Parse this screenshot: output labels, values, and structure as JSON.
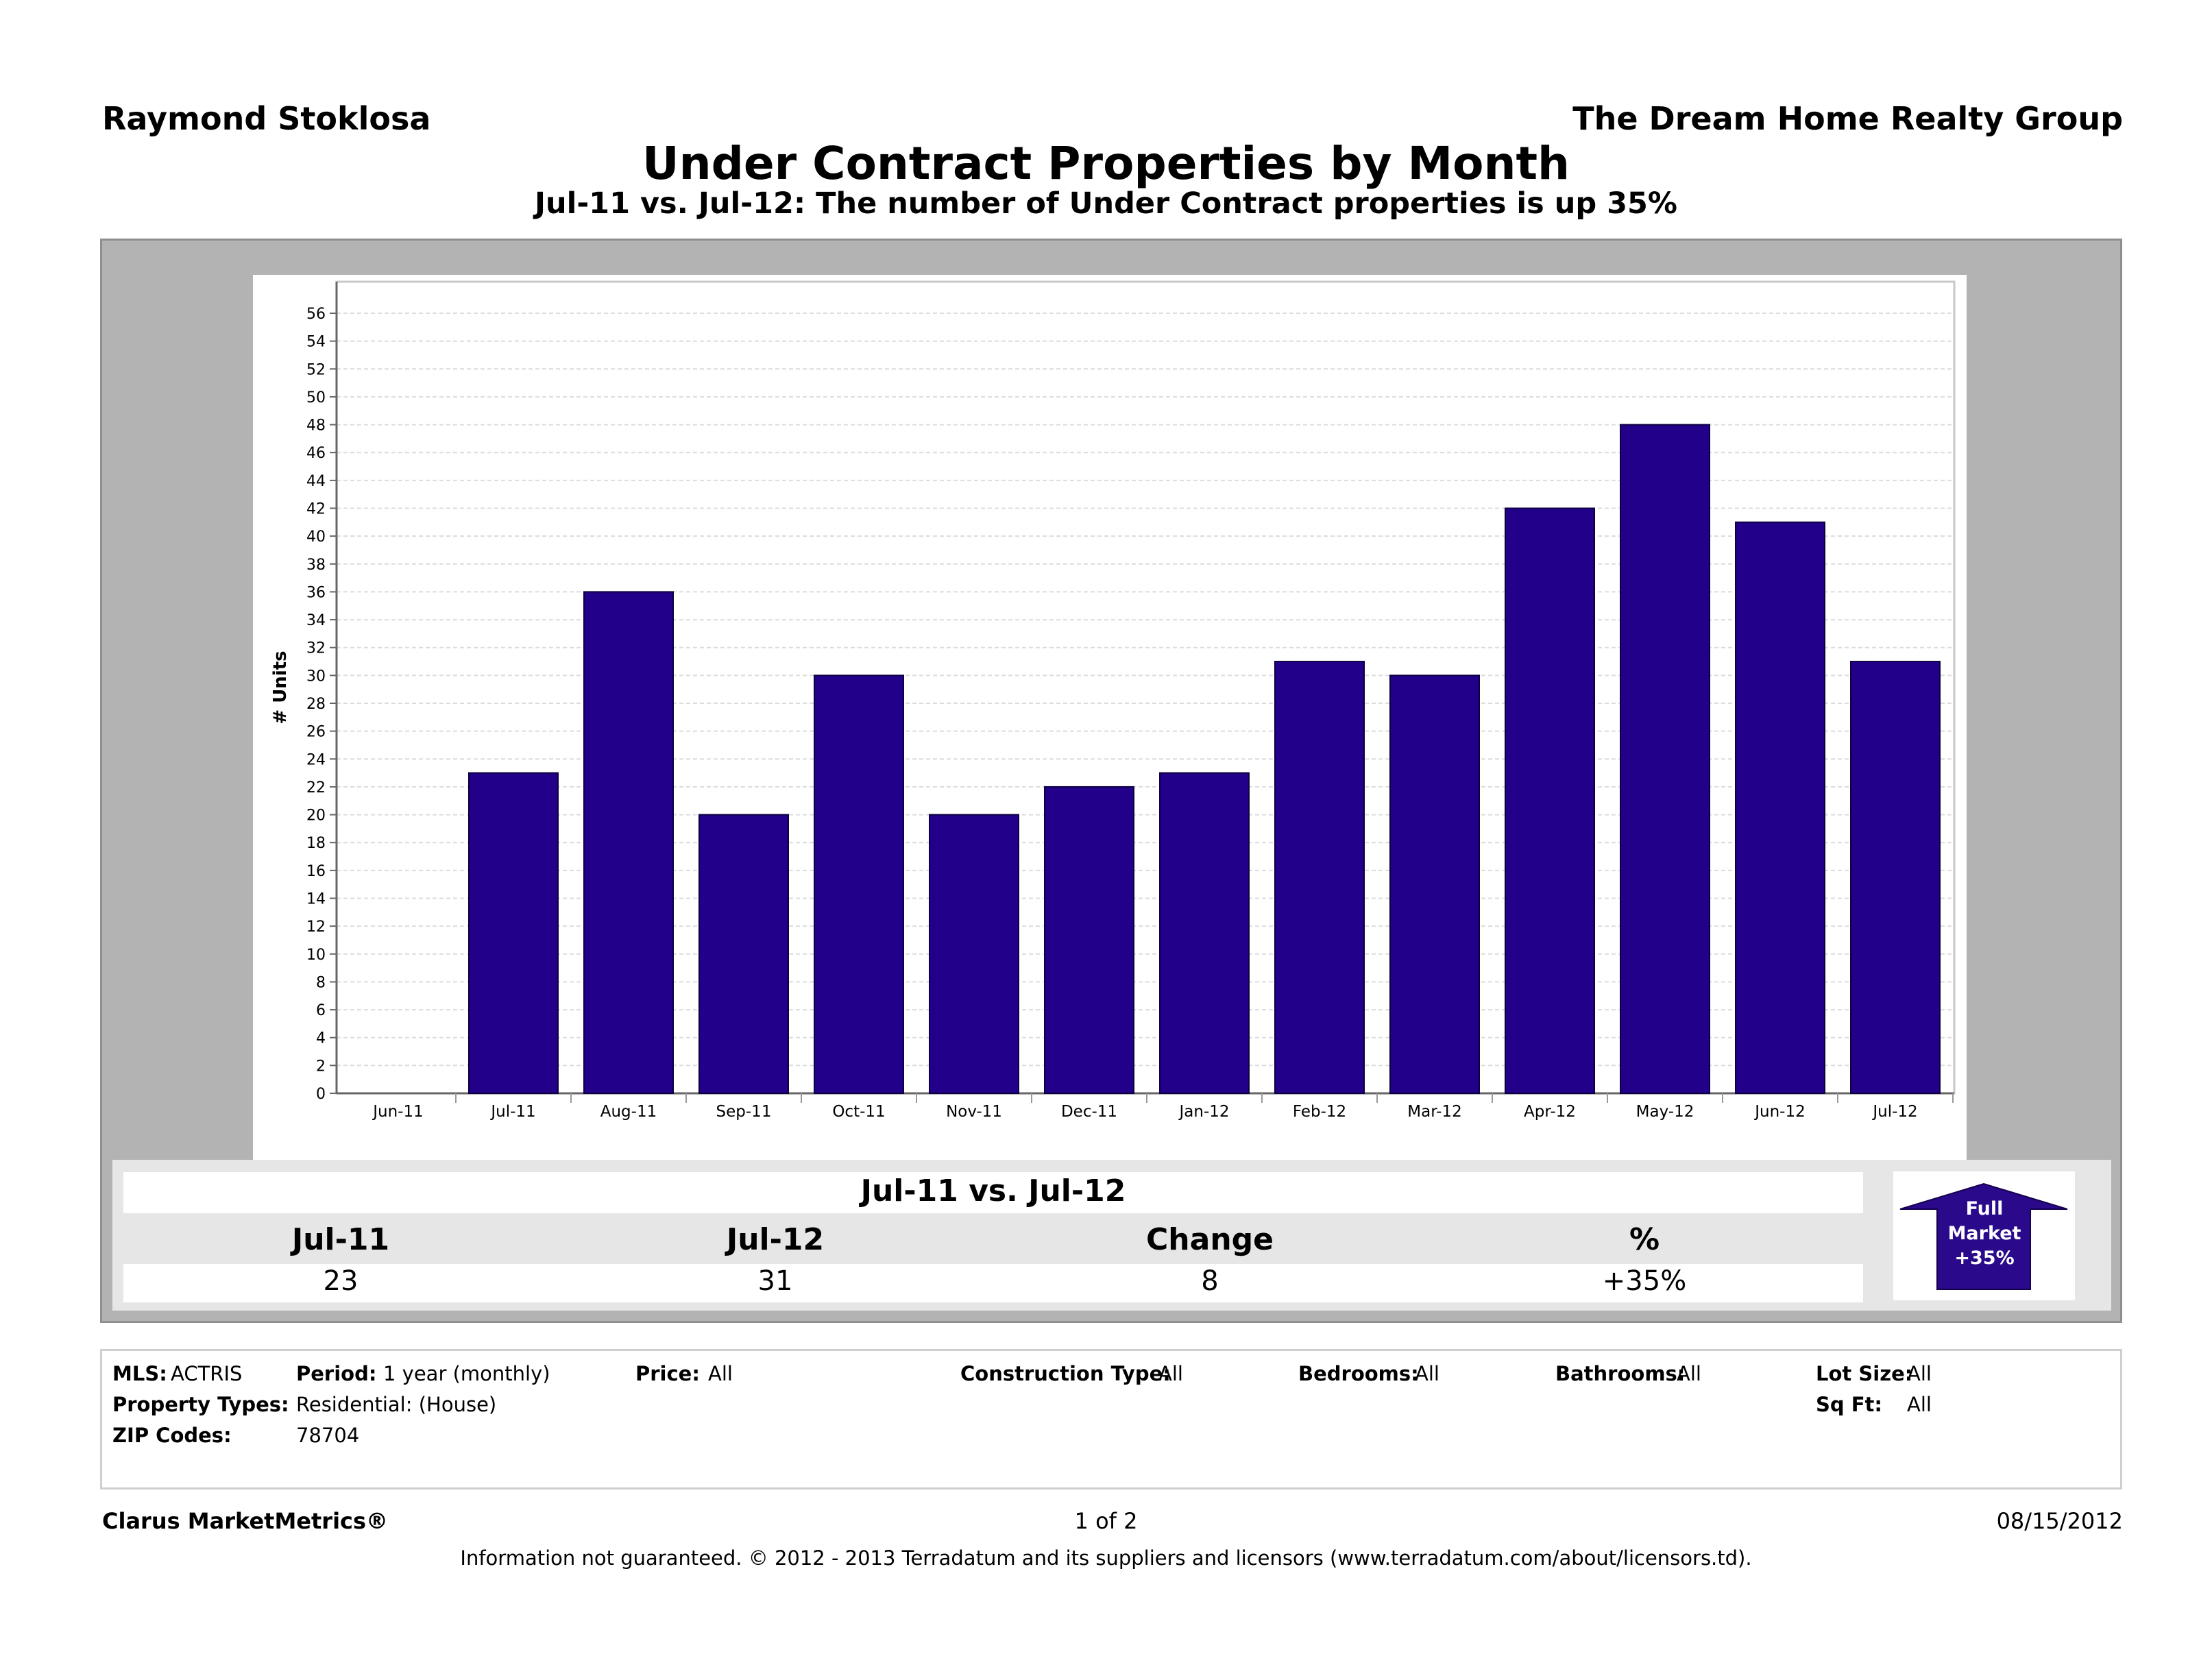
{
  "header": {
    "agent": "Raymond Stoklosa",
    "company": "The Dream Home Realty Group",
    "title": "Under Contract Properties by Month",
    "subtitle": "Jul-11 vs. Jul-12: The number of Under Contract properties is up 35%"
  },
  "chart_data": {
    "type": "bar",
    "title": "Under Contract Properties by Month",
    "ylabel": "# Units",
    "xlabel": "",
    "ylim": [
      0,
      56
    ],
    "ytick_step": 2,
    "grid": true,
    "categories": [
      "Jun-11",
      "Jul-11",
      "Aug-11",
      "Sep-11",
      "Oct-11",
      "Nov-11",
      "Dec-11",
      "Jan-12",
      "Feb-12",
      "Mar-12",
      "Apr-12",
      "May-12",
      "Jun-12",
      "Jul-12"
    ],
    "values": [
      null,
      23,
      36,
      20,
      30,
      20,
      22,
      23,
      31,
      30,
      42,
      48,
      41,
      31
    ],
    "bar_color": "#23008a"
  },
  "comparison": {
    "title": "Jul-11 vs. Jul-12",
    "headers": [
      "Jul-11",
      "Jul-12",
      "Change",
      "%"
    ],
    "values": [
      "23",
      "31",
      "8",
      "+35%"
    ],
    "badge": {
      "line1": "Full",
      "line2": "Market",
      "line3": "+35%",
      "color": "#2a0a8a"
    }
  },
  "criteria": {
    "mls_label": "MLS:",
    "mls": "ACTRIS",
    "period_label": "Period:",
    "period": "1 year (monthly)",
    "price_label": "Price:",
    "price": "All",
    "construction_label": "Construction Type:",
    "construction": "All",
    "bedrooms_label": "Bedrooms:",
    "bedrooms": "All",
    "bathrooms_label": "Bathrooms:",
    "bathrooms": "All",
    "lotsize_label": "Lot Size:",
    "lotsize": "All",
    "proptypes_label": "Property Types:",
    "proptypes": "Residential: (House)",
    "sqft_label": "Sq Ft:",
    "sqft": "All",
    "zip_label": "ZIP Codes:",
    "zip": "78704"
  },
  "footer": {
    "brand": "Clarus MarketMetrics®",
    "page": "1 of 2",
    "date": "08/15/2012",
    "disclaimer": "Information not guaranteed.  © 2012 - 2013 Terradatum and its suppliers and licensors (www.terradatum.com/about/licensors.td)."
  }
}
